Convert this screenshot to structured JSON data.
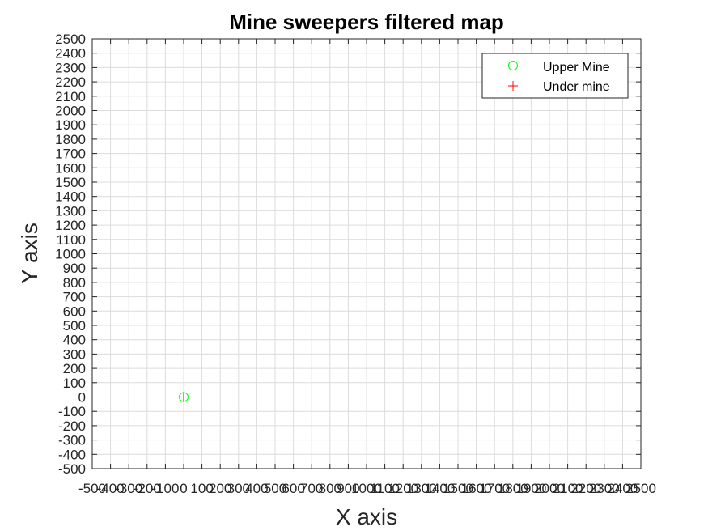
{
  "chart_data": {
    "type": "scatter",
    "title": "Mine sweepers filtered map",
    "xlabel": "X axis",
    "ylabel": "Y axis",
    "xlim": [
      -500,
      2500
    ],
    "ylim": [
      -500,
      2500
    ],
    "x_tick_step": 100,
    "y_tick_step": 100,
    "grid": true,
    "legend_position": "top-right",
    "series": [
      {
        "name": "Upper Mine",
        "marker": "circle",
        "color": "#00ff00",
        "points": [
          [
            0,
            0
          ]
        ]
      },
      {
        "name": "Under mine",
        "marker": "plus",
        "color": "#ff0000",
        "points": [
          [
            0,
            0
          ]
        ]
      }
    ]
  }
}
